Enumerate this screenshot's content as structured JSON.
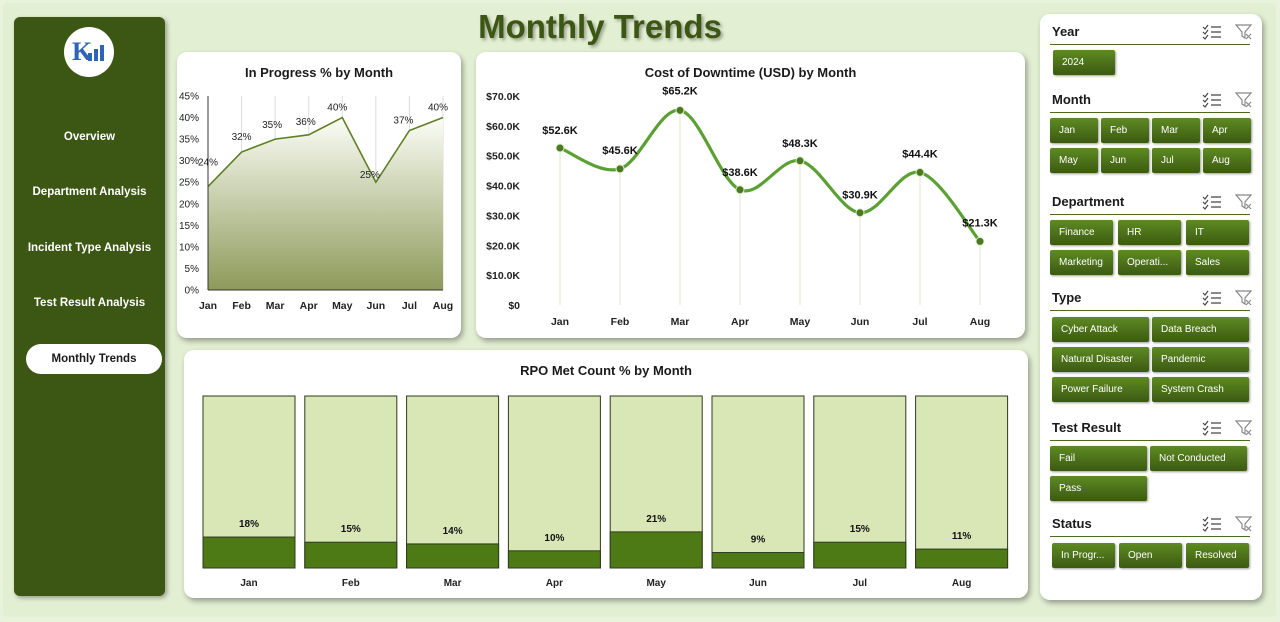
{
  "page_title": "Monthly Trends",
  "logo_icon": "company-logo-icon",
  "nav": {
    "items": [
      "Overview",
      "Department Analysis",
      "Incident Type Analysis",
      "Test Result Analysis"
    ],
    "active": "Monthly Trends"
  },
  "colors": {
    "sidebar": "#3c5614",
    "accent": "#5e8a22",
    "bar_fill": "#d8e7b5",
    "bar_value": "#4e7a16",
    "line": "#5aa032"
  },
  "charts": {
    "in_progress_title": "In Progress % by Month",
    "downtime_title": "Cost of Downtime (USD) by Month",
    "rpo_title": "RPO Met Count % by Month"
  },
  "chart_data": [
    {
      "type": "area",
      "title": "In Progress % by Month",
      "categories": [
        "Jan",
        "Feb",
        "Mar",
        "Apr",
        "May",
        "Jun",
        "Jul",
        "Aug"
      ],
      "values": [
        24,
        32,
        35,
        36,
        40,
        25,
        37,
        40
      ],
      "value_labels": [
        "24%",
        "32%",
        "35%",
        "36%",
        "40%",
        "25%",
        "37%",
        "40%"
      ],
      "yticks": [
        "0%",
        "5%",
        "10%",
        "15%",
        "20%",
        "25%",
        "30%",
        "35%",
        "40%",
        "45%"
      ],
      "ylim": [
        0,
        45
      ],
      "grid": true
    },
    {
      "type": "line",
      "title": "Cost of Downtime (USD) by Month",
      "categories": [
        "Jan",
        "Feb",
        "Mar",
        "Apr",
        "May",
        "Jun",
        "Jul",
        "Aug"
      ],
      "values": [
        52.6,
        45.6,
        65.2,
        38.6,
        48.3,
        30.9,
        44.4,
        21.3
      ],
      "value_labels": [
        "$52.6K",
        "$45.6K",
        "$65.2K",
        "$38.6K",
        "$48.3K",
        "$30.9K",
        "$44.4K",
        "$21.3K"
      ],
      "yticks": [
        "$0",
        "$10.0K",
        "$20.0K",
        "$30.0K",
        "$40.0K",
        "$50.0K",
        "$60.0K",
        "$70.0K"
      ],
      "ylim": [
        0,
        70
      ],
      "grid": true
    },
    {
      "type": "bar",
      "title": "RPO Met Count % by Month",
      "categories": [
        "Jan",
        "Feb",
        "Mar",
        "Apr",
        "May",
        "Jun",
        "Jul",
        "Aug"
      ],
      "values": [
        18,
        15,
        14,
        10,
        21,
        9,
        15,
        11
      ],
      "value_labels": [
        "18%",
        "15%",
        "14%",
        "10%",
        "21%",
        "9%",
        "15%",
        "11%"
      ],
      "ylim": [
        0,
        100
      ]
    }
  ],
  "slicers": [
    {
      "title": "Year",
      "items": [
        "2024"
      ]
    },
    {
      "title": "Month",
      "items": [
        "Jan",
        "Feb",
        "Mar",
        "Apr",
        "May",
        "Jun",
        "Jul",
        "Aug"
      ]
    },
    {
      "title": "Department",
      "items": [
        "Finance",
        "HR",
        "IT",
        "Marketing",
        "Operati...",
        "Sales"
      ]
    },
    {
      "title": "Type",
      "items": [
        "Cyber Attack",
        "Data Breach",
        "Natural Disaster",
        "Pandemic",
        "Power Failure",
        "System Crash"
      ]
    },
    {
      "title": "Test Result",
      "items": [
        "Fail",
        "Not Conducted",
        "Pass"
      ]
    },
    {
      "title": "Status",
      "items": [
        "In Progr...",
        "Open",
        "Resolved"
      ]
    }
  ],
  "slicer_icons": [
    "multi-select-icon",
    "clear-filter-icon"
  ]
}
